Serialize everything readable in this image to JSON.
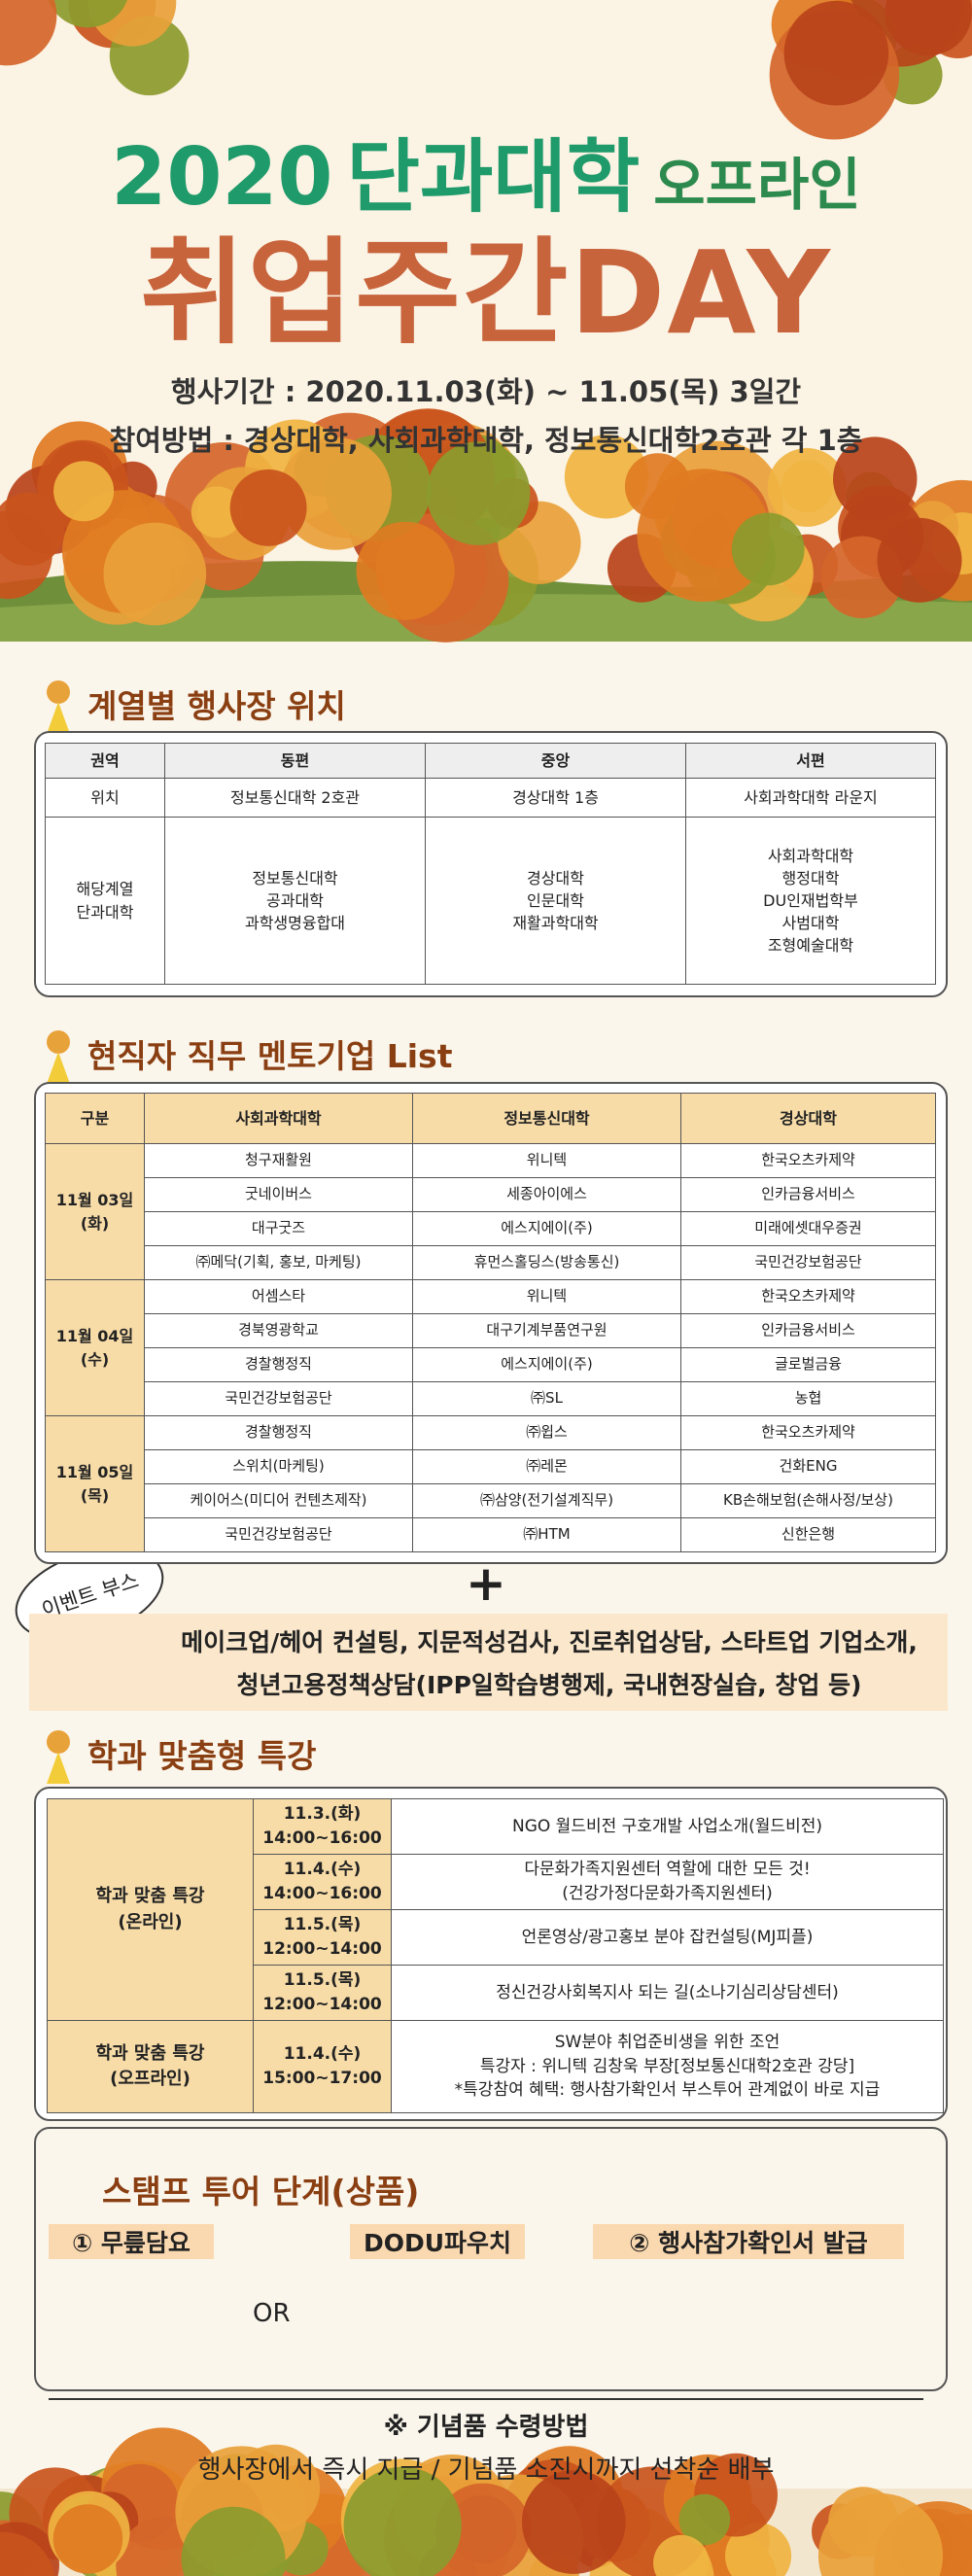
{
  "header": {
    "title_year": "2020",
    "title_college": "단과대학",
    "title_offline": "오프라인",
    "title_main": "취업주간DAY",
    "period": "행사기간 : 2020.11.03(화) ~ 11.05(목) 3일간",
    "method": "참여방법 : 경상대학, 사회과학대학, 정보통신대학2호관 각 1층"
  },
  "section1": {
    "heading": "계열별 행사장 위치",
    "columns": [
      "권역",
      "동편",
      "중앙",
      "서편"
    ],
    "rows": [
      [
        [
          "위치"
        ],
        [
          "정보통신대학 2호관"
        ],
        [
          "경상대학 1층"
        ],
        [
          "사회과학대학 라운지"
        ]
      ],
      [
        [
          "해당계열",
          "단과대학"
        ],
        [
          "정보통신대학",
          "공과대학",
          "과학생명융합대"
        ],
        [
          "경상대학",
          "인문대학",
          "재활과학대학"
        ],
        [
          "사회과학대학",
          "행정대학",
          "DU인재법학부",
          "사범대학",
          "조형예술대학"
        ]
      ]
    ]
  },
  "section2": {
    "heading": "현직자 직무 멘토기업 List",
    "columns": [
      "구분",
      "사회과학대학",
      "정보통신대학",
      "경상대학"
    ],
    "groups": [
      {
        "day": [
          "11월 03일",
          "(화)"
        ],
        "rows": [
          [
            "청구재활원",
            "위니텍",
            "한국오츠카제약"
          ],
          [
            "굿네이버스",
            "세종아이에스",
            "인카금융서비스"
          ],
          [
            "대구굿즈",
            "에스지에이(주)",
            "미래에셋대우증권"
          ],
          [
            "㈜메닥(기획, 홍보, 마케팅)",
            "휴먼스홀딩스(방송통신)",
            "국민건강보험공단"
          ]
        ]
      },
      {
        "day": [
          "11월 04일",
          "(수)"
        ],
        "rows": [
          [
            "어셈스타",
            "위니텍",
            "한국오츠카제약"
          ],
          [
            "경북영광학교",
            "대구기계부품연구원",
            "인카금융서비스"
          ],
          [
            "경찰행정직",
            "에스지에이(주)",
            "글로벌금융"
          ],
          [
            "국민건강보험공단",
            "㈜SL",
            "농협"
          ]
        ]
      },
      {
        "day": [
          "11월 05일",
          "(목)"
        ],
        "rows": [
          [
            "경찰행정직",
            "㈜윕스",
            "한국오츠카제약"
          ],
          [
            "스위치(마케팅)",
            "㈜레몬",
            "건화ENG"
          ],
          [
            "케이어스(미디어 컨텐츠제작)",
            "㈜삼양(전기설계직무)",
            "KB손해보험(손해사정/보상)"
          ],
          [
            "국민건강보험공단",
            "㈜HTM",
            "신한은행"
          ]
        ]
      }
    ]
  },
  "event": {
    "plus": "+",
    "badge": "이벤트 부스",
    "lines": [
      "메이크업/헤어 컨설팅, 지문적성검사, 진로취업상담, 스타트업 기업소개,",
      "청년고용정책상담(IPP일학습병행제, 국내현장실습, 창업 등)"
    ]
  },
  "section3": {
    "heading": "학과 맞춤형 특강",
    "groups": [
      {
        "label": [
          "학과 맞춤 특강",
          "(온라인)"
        ],
        "rows": [
          {
            "time": [
              "11.3.(화)",
              "14:00~16:00"
            ],
            "content": [
              "NGO 월드비전 구호개발 사업소개(월드비전)"
            ]
          },
          {
            "time": [
              "11.4.(수)",
              "14:00~16:00"
            ],
            "content": [
              "다문화가족지원센터 역할에 대한 모든 것!",
              "(건강가정다문화가족지원센터)"
            ]
          },
          {
            "time": [
              "11.5.(목)",
              "12:00~14:00"
            ],
            "content": [
              "언론영상/광고홍보 분야 잡컨설팅(MJ피플)"
            ]
          },
          {
            "time": [
              "11.5.(목)",
              "12:00~14:00"
            ],
            "content": [
              "정신건강사회복지사 되는 길(소나기심리상담센터)"
            ]
          }
        ]
      },
      {
        "label": [
          "학과 맞춤 특강",
          "(오프라인)"
        ],
        "rows": [
          {
            "time": [
              "11.4.(수)",
              "15:00~17:00"
            ],
            "content": [
              "SW분야 취업준비생을 위한 조언",
              "특강자 : 위니텍 김창욱 부장[정보통신대학2호관 강당]",
              "*특강참여 혜택: 행사참가확인서 부스투어 관계없이 바로 지급"
            ]
          }
        ]
      }
    ]
  },
  "stamp": {
    "heading": "스탬프 투어 단계(상품)",
    "items": [
      "① 무릎담요",
      "DODU파우치",
      "② 행사참가확인서 발급"
    ],
    "or": "OR"
  },
  "footer": {
    "lines": [
      "※ 기념품 수령방법",
      "행사장에서 즉시 지급 / 기념품 소진시까지 선착순 배부"
    ]
  }
}
